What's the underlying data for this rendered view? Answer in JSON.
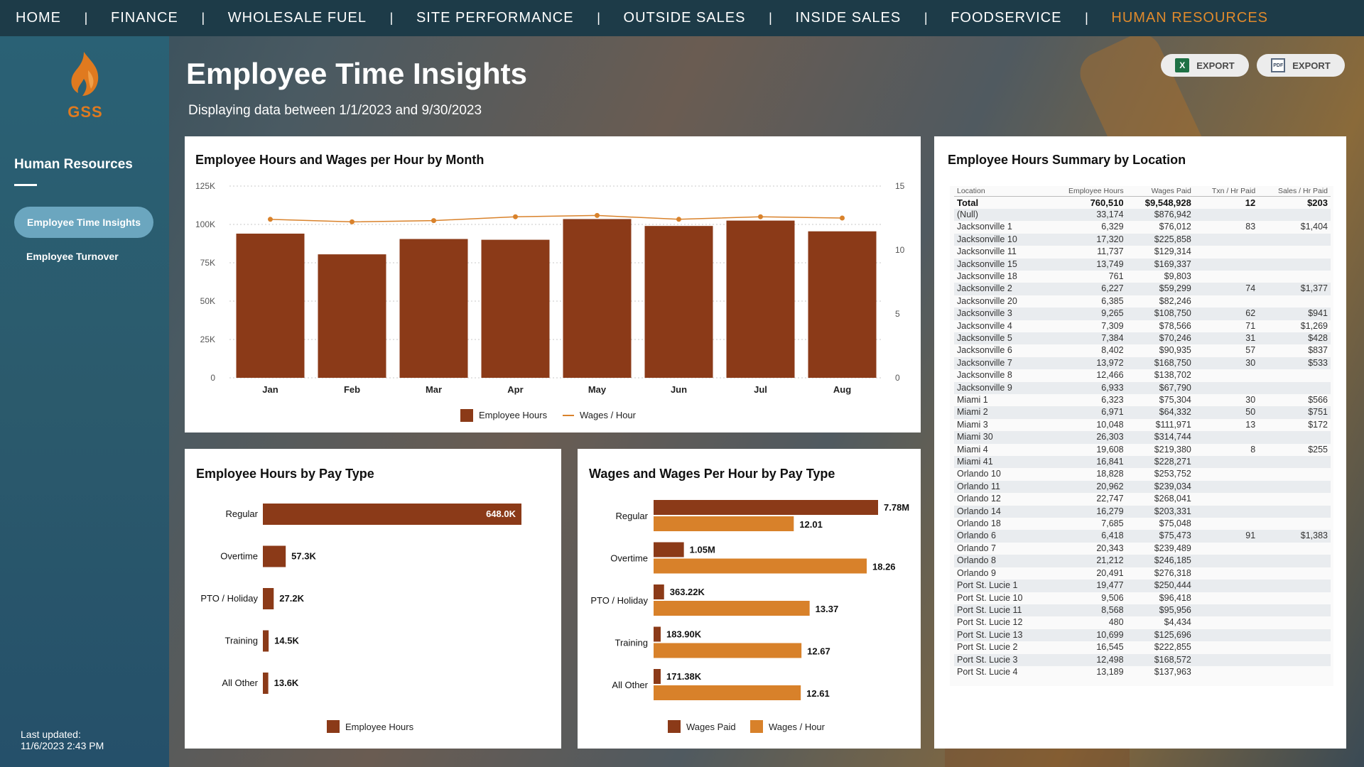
{
  "nav": {
    "items": [
      "HOME",
      "FINANCE",
      "WHOLESALE FUEL",
      "SITE PERFORMANCE",
      "OUTSIDE SALES",
      "INSIDE SALES",
      "FOODSERVICE",
      "HUMAN RESOURCES"
    ],
    "separator": "|",
    "active": "HUMAN RESOURCES",
    "active_color": "#e08a2c"
  },
  "sidebar": {
    "logo_text": "GSS",
    "section_title": "Human Resources",
    "links": [
      "Employee Time Insights",
      "Employee Turnover"
    ],
    "last_updated_label": "Last updated:",
    "last_updated_value": "11/6/2023 2:43 PM"
  },
  "header": {
    "title": "Employee Time Insights",
    "subtitle": "Displaying data between 1/1/2023 and 9/30/2023",
    "export_excel": "EXPORT",
    "export_pdf": "EXPORT",
    "excel_icon": "X",
    "pdf_icon": "PDF"
  },
  "colors": {
    "hours": "#8b3a18",
    "wages_line": "#d9822b",
    "wages_per_hour_bar": "#d8812a"
  },
  "monthly_chart": {
    "title": "Employee Hours and Wages per Hour by Month",
    "left_ticks": [
      "125K",
      "100K",
      "75K",
      "50K",
      "25K",
      "0"
    ],
    "right_ticks": [
      "15",
      "10",
      "5",
      "0"
    ],
    "legend": [
      "Employee Hours",
      "Wages / Hour"
    ]
  },
  "pay_hours_chart": {
    "title": "Employee Hours by Pay Type",
    "legend": [
      "Employee Hours"
    ]
  },
  "pay_wages_chart": {
    "title": "Wages and Wages Per Hour by Pay Type",
    "legend": [
      "Wages Paid",
      "Wages / Hour"
    ]
  },
  "chart_data": [
    {
      "type": "bar",
      "title": "Employee Hours and Wages per Hour by Month",
      "categories": [
        "Jan",
        "Feb",
        "Mar",
        "Apr",
        "May",
        "Jun",
        "Jul",
        "Aug"
      ],
      "series": [
        {
          "name": "Employee Hours",
          "values": [
            94000,
            80500,
            90500,
            90000,
            103500,
            99000,
            102500,
            95500
          ],
          "axis": "left",
          "kind": "bar"
        },
        {
          "name": "Wages / Hour",
          "values": [
            12.4,
            12.2,
            12.3,
            12.6,
            12.7,
            12.4,
            12.6,
            12.5
          ],
          "axis": "right",
          "kind": "line"
        }
      ],
      "ylim": [
        0,
        125000
      ],
      "y2lim": [
        0,
        15
      ],
      "grid": true,
      "legend_position": "bottom"
    },
    {
      "type": "bar",
      "orientation": "horizontal",
      "title": "Employee Hours by Pay Type",
      "categories": [
        "Regular",
        "Overtime",
        "PTO / Holiday",
        "Training",
        "All Other"
      ],
      "series": [
        {
          "name": "Employee Hours",
          "values": [
            648000,
            57300,
            27200,
            14500,
            13600
          ],
          "labels": [
            "648.0K",
            "57.3K",
            "27.2K",
            "14.5K",
            "13.6K"
          ]
        }
      ],
      "legend_position": "bottom"
    },
    {
      "type": "bar",
      "orientation": "horizontal",
      "title": "Wages and Wages Per Hour by Pay Type",
      "categories": [
        "Regular",
        "Overtime",
        "PTO / Holiday",
        "Training",
        "All Other"
      ],
      "series": [
        {
          "name": "Wages Paid",
          "values": [
            7780000,
            1050000,
            363220,
            183900,
            171380
          ],
          "labels": [
            "7.78M",
            "1.05M",
            "363.22K",
            "183.90K",
            "171.38K"
          ]
        },
        {
          "name": "Wages / Hour",
          "values": [
            12.01,
            18.26,
            13.37,
            12.67,
            12.61
          ],
          "labels": [
            "12.01",
            "18.26",
            "13.37",
            "12.67",
            "12.61"
          ]
        }
      ],
      "legend_position": "bottom"
    },
    {
      "type": "table",
      "title": "Employee Hours Summary by Location",
      "columns": [
        "Location",
        "Employee Hours",
        "Wages Paid",
        "Txn / Hr Paid",
        "Sales / Hr Paid"
      ],
      "rows": [
        [
          "Total",
          "760,510",
          "$9,548,928",
          "12",
          "$203"
        ],
        [
          "(Null)",
          "33,174",
          "$876,942",
          "",
          ""
        ],
        [
          "Jacksonville 1",
          "6,329",
          "$76,012",
          "83",
          "$1,404"
        ],
        [
          "Jacksonville 10",
          "17,320",
          "$225,858",
          "",
          ""
        ],
        [
          "Jacksonville 11",
          "11,737",
          "$129,314",
          "",
          ""
        ],
        [
          "Jacksonville 15",
          "13,749",
          "$169,337",
          "",
          ""
        ],
        [
          "Jacksonville 18",
          "761",
          "$9,803",
          "",
          ""
        ],
        [
          "Jacksonville 2",
          "6,227",
          "$59,299",
          "74",
          "$1,377"
        ],
        [
          "Jacksonville 20",
          "6,385",
          "$82,246",
          "",
          ""
        ],
        [
          "Jacksonville 3",
          "9,265",
          "$108,750",
          "62",
          "$941"
        ],
        [
          "Jacksonville 4",
          "7,309",
          "$78,566",
          "71",
          "$1,269"
        ],
        [
          "Jacksonville 5",
          "7,384",
          "$70,246",
          "31",
          "$428"
        ],
        [
          "Jacksonville 6",
          "8,402",
          "$90,935",
          "57",
          "$837"
        ],
        [
          "Jacksonville 7",
          "13,972",
          "$168,750",
          "30",
          "$533"
        ],
        [
          "Jacksonville 8",
          "12,466",
          "$138,702",
          "",
          ""
        ],
        [
          "Jacksonville 9",
          "6,933",
          "$67,790",
          "",
          ""
        ],
        [
          "Miami 1",
          "6,323",
          "$75,304",
          "30",
          "$566"
        ],
        [
          "Miami 2",
          "6,971",
          "$64,332",
          "50",
          "$751"
        ],
        [
          "Miami 3",
          "10,048",
          "$111,971",
          "13",
          "$172"
        ],
        [
          "Miami 30",
          "26,303",
          "$314,744",
          "",
          ""
        ],
        [
          "Miami 4",
          "19,608",
          "$219,380",
          "8",
          "$255"
        ],
        [
          "Miami 41",
          "16,841",
          "$228,271",
          "",
          ""
        ],
        [
          "Orlando 10",
          "18,828",
          "$253,752",
          "",
          ""
        ],
        [
          "Orlando 11",
          "20,962",
          "$239,034",
          "",
          ""
        ],
        [
          "Orlando 12",
          "22,747",
          "$268,041",
          "",
          ""
        ],
        [
          "Orlando 14",
          "16,279",
          "$203,331",
          "",
          ""
        ],
        [
          "Orlando 18",
          "7,685",
          "$75,048",
          "",
          ""
        ],
        [
          "Orlando 6",
          "6,418",
          "$75,473",
          "91",
          "$1,383"
        ],
        [
          "Orlando 7",
          "20,343",
          "$239,489",
          "",
          ""
        ],
        [
          "Orlando 8",
          "21,212",
          "$246,185",
          "",
          ""
        ],
        [
          "Orlando 9",
          "20,491",
          "$276,318",
          "",
          ""
        ],
        [
          "Port St. Lucie 1",
          "19,477",
          "$250,444",
          "",
          ""
        ],
        [
          "Port St. Lucie 10",
          "9,506",
          "$96,418",
          "",
          ""
        ],
        [
          "Port St. Lucie 11",
          "8,568",
          "$95,956",
          "",
          ""
        ],
        [
          "Port St. Lucie 12",
          "480",
          "$4,434",
          "",
          ""
        ],
        [
          "Port St. Lucie 13",
          "10,699",
          "$125,696",
          "",
          ""
        ],
        [
          "Port St. Lucie 2",
          "16,545",
          "$222,855",
          "",
          ""
        ],
        [
          "Port St. Lucie 3",
          "12,498",
          "$168,572",
          "",
          ""
        ],
        [
          "Port St. Lucie 4",
          "13,189",
          "$137,963",
          "",
          ""
        ]
      ]
    }
  ]
}
